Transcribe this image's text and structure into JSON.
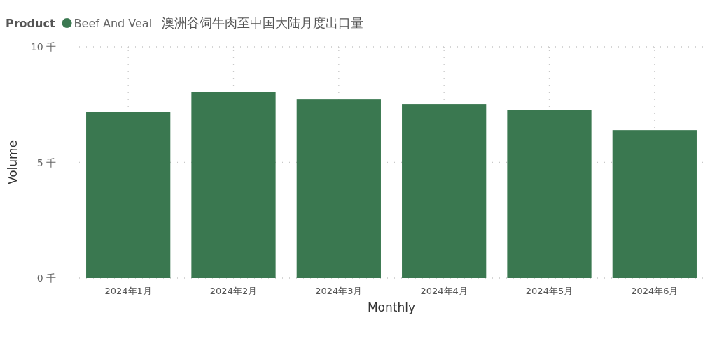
{
  "chart_data": {
    "type": "bar",
    "title": "澳洲谷饲牛肉至中国大陆月度出口量",
    "legend_title": "Product",
    "xlabel": "Monthly",
    "ylabel": "Volume",
    "categories": [
      "2024年1月",
      "2024年2月",
      "2024年3月",
      "2024年4月",
      "2024年5月",
      "2024年6月"
    ],
    "series": [
      {
        "name": "Beef And Veal",
        "color": "#3a7850",
        "values": [
          7.16,
          8.04,
          7.73,
          7.52,
          7.28,
          6.4
        ]
      }
    ],
    "ylim": [
      0,
      10
    ],
    "yticks": [
      {
        "value": 0,
        "label": "0 千"
      },
      {
        "value": 5,
        "label": "5 千"
      },
      {
        "value": 10,
        "label": "10 千"
      }
    ],
    "grid": true,
    "legend": "top left"
  }
}
